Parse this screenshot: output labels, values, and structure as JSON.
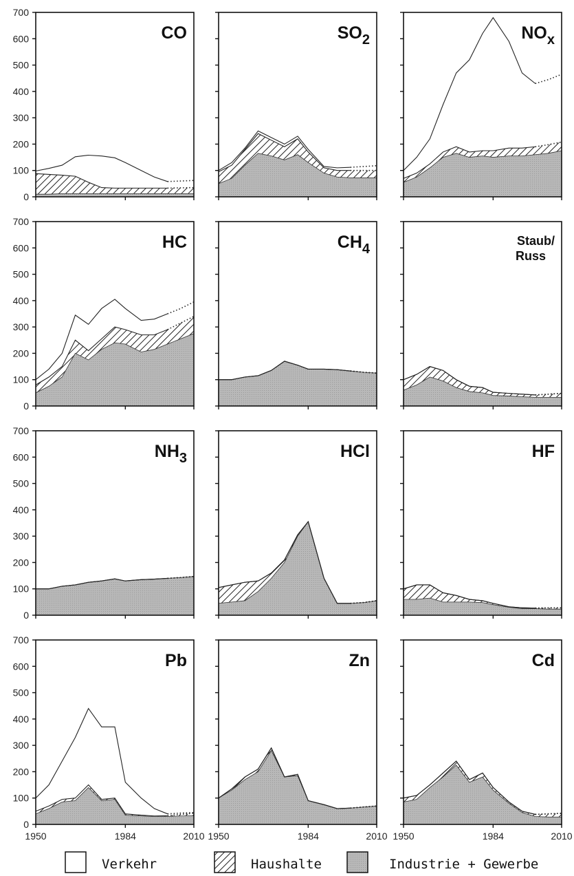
{
  "chart_data": {
    "type": "area",
    "stacked": true,
    "x_ticks": [
      1950,
      1984,
      2010
    ],
    "y_ticks": [
      0,
      100,
      200,
      300,
      400,
      500,
      600,
      700
    ],
    "ylim": [
      0,
      700
    ],
    "xlim": [
      1950,
      2010
    ],
    "dotted_from_year": 2000,
    "legend": [
      {
        "key": "verkehr",
        "label": "Verkehr",
        "fill": "#ffffff"
      },
      {
        "key": "haushalte",
        "label": "Haushalte",
        "fill": "hatch"
      },
      {
        "key": "industrie",
        "label": "Industrie + Gewerbe",
        "fill": "#bdbdbd"
      }
    ],
    "panels": [
      {
        "title": "CO",
        "sub": "",
        "x": [
          1950,
          1955,
          1960,
          1965,
          1970,
          1975,
          1980,
          1984,
          1990,
          1995,
          2000,
          2005,
          2010
        ],
        "industrie": [
          10,
          10,
          12,
          12,
          12,
          12,
          12,
          12,
          12,
          12,
          12,
          12,
          12
        ],
        "total_hh": [
          88,
          85,
          82,
          78,
          55,
          35,
          33,
          33,
          33,
          33,
          33,
          34,
          35
        ],
        "total": [
          98,
          108,
          120,
          152,
          158,
          155,
          148,
          130,
          100,
          75,
          58,
          60,
          62
        ]
      },
      {
        "title": "SO",
        "sub": "2",
        "x": [
          1950,
          1955,
          1960,
          1965,
          1970,
          1975,
          1980,
          1984,
          1990,
          1995,
          2000,
          2005,
          2010
        ],
        "industrie": [
          50,
          70,
          120,
          165,
          155,
          140,
          160,
          130,
          90,
          75,
          72,
          72,
          72
        ],
        "total_hh": [
          95,
          120,
          180,
          240,
          215,
          190,
          220,
          170,
          110,
          100,
          100,
          100,
          100
        ],
        "total": [
          100,
          130,
          185,
          250,
          225,
          200,
          230,
          180,
          115,
          110,
          112,
          115,
          118
        ]
      },
      {
        "title": "NO",
        "sub": "x",
        "x": [
          1950,
          1955,
          1960,
          1965,
          1970,
          1975,
          1980,
          1984,
          1990,
          1995,
          2000,
          2005,
          2010
        ],
        "industrie": [
          55,
          75,
          110,
          150,
          165,
          150,
          155,
          150,
          155,
          155,
          160,
          165,
          175
        ],
        "total_hh": [
          70,
          90,
          125,
          170,
          190,
          170,
          175,
          175,
          185,
          185,
          190,
          198,
          208
        ],
        "total": [
          100,
          150,
          220,
          350,
          470,
          520,
          620,
          680,
          590,
          470,
          430,
          445,
          465
        ]
      },
      {
        "title": "HC",
        "sub": "",
        "x": [
          1950,
          1955,
          1960,
          1965,
          1970,
          1975,
          1980,
          1984,
          1990,
          1995,
          2000,
          2005,
          2010
        ],
        "industrie": [
          50,
          75,
          110,
          200,
          175,
          215,
          240,
          235,
          205,
          215,
          235,
          255,
          275
        ],
        "total_hh": [
          80,
          110,
          150,
          250,
          210,
          255,
          300,
          290,
          270,
          270,
          290,
          315,
          340
        ],
        "total": [
          100,
          140,
          200,
          345,
          310,
          370,
          405,
          370,
          325,
          330,
          350,
          370,
          395
        ]
      },
      {
        "title": "CH",
        "sub": "4",
        "x": [
          1950,
          1955,
          1960,
          1965,
          1970,
          1975,
          1980,
          1984,
          1990,
          1995,
          2000,
          2005,
          2010
        ],
        "industrie": [
          100,
          100,
          110,
          115,
          135,
          170,
          155,
          140,
          140,
          138,
          133,
          128,
          125
        ],
        "total_hh": [
          100,
          100,
          110,
          115,
          135,
          170,
          155,
          140,
          140,
          138,
          133,
          128,
          125
        ],
        "total": [
          100,
          100,
          110,
          115,
          135,
          170,
          155,
          140,
          140,
          138,
          133,
          128,
          125
        ]
      },
      {
        "title": "Staub/",
        "title2": "Russ",
        "sub": "",
        "x": [
          1950,
          1955,
          1960,
          1965,
          1970,
          1975,
          1980,
          1984,
          1990,
          1995,
          2000,
          2005,
          2010
        ],
        "industrie": [
          60,
          80,
          110,
          95,
          70,
          55,
          50,
          40,
          38,
          35,
          33,
          33,
          33
        ],
        "total_hh": [
          100,
          120,
          150,
          135,
          100,
          75,
          70,
          52,
          48,
          45,
          42,
          45,
          48
        ],
        "total": [
          100,
          120,
          150,
          135,
          100,
          75,
          70,
          52,
          48,
          45,
          42,
          45,
          48
        ]
      },
      {
        "title": "NH",
        "sub": "3",
        "x": [
          1950,
          1955,
          1960,
          1965,
          1970,
          1975,
          1980,
          1984,
          1990,
          1995,
          2000,
          2005,
          2010
        ],
        "industrie": [
          100,
          100,
          110,
          115,
          125,
          130,
          138,
          130,
          135,
          137,
          140,
          143,
          147
        ],
        "total_hh": [
          100,
          100,
          110,
          115,
          125,
          130,
          138,
          130,
          135,
          137,
          140,
          143,
          147
        ],
        "total": [
          100,
          100,
          110,
          115,
          125,
          130,
          138,
          130,
          135,
          137,
          140,
          143,
          147
        ]
      },
      {
        "title": "HCl",
        "sub": "",
        "x": [
          1950,
          1955,
          1960,
          1965,
          1970,
          1975,
          1980,
          1984,
          1990,
          1995,
          2000,
          2005,
          2010
        ],
        "industrie": [
          45,
          50,
          55,
          90,
          140,
          200,
          300,
          355,
          140,
          45,
          45,
          48,
          55
        ],
        "total_hh": [
          105,
          115,
          125,
          130,
          160,
          210,
          305,
          355,
          140,
          45,
          45,
          48,
          55
        ],
        "total": [
          105,
          115,
          125,
          130,
          160,
          210,
          305,
          355,
          140,
          45,
          45,
          48,
          55
        ]
      },
      {
        "title": "HF",
        "sub": "",
        "x": [
          1950,
          1955,
          1960,
          1965,
          1970,
          1975,
          1980,
          1984,
          1990,
          1995,
          2000,
          2005,
          2010
        ],
        "industrie": [
          60,
          60,
          65,
          50,
          50,
          50,
          48,
          40,
          30,
          25,
          25,
          23,
          23
        ],
        "total_hh": [
          100,
          115,
          115,
          85,
          75,
          60,
          55,
          45,
          32,
          28,
          27,
          28,
          28
        ],
        "total": [
          100,
          115,
          115,
          85,
          75,
          60,
          55,
          45,
          32,
          28,
          27,
          28,
          28
        ]
      },
      {
        "title": "Pb",
        "sub": "",
        "x": [
          1950,
          1955,
          1960,
          1965,
          1970,
          1975,
          1980,
          1984,
          1990,
          1995,
          2000,
          2005,
          2010
        ],
        "industrie": [
          40,
          60,
          85,
          90,
          140,
          90,
          95,
          35,
          32,
          30,
          30,
          32,
          33
        ],
        "total_hh": [
          50,
          70,
          95,
          100,
          150,
          95,
          100,
          40,
          35,
          32,
          33,
          38,
          42
        ],
        "total": [
          100,
          150,
          240,
          330,
          440,
          370,
          370,
          160,
          100,
          60,
          40,
          43,
          45
        ]
      },
      {
        "title": "Zn",
        "sub": "",
        "x": [
          1950,
          1955,
          1960,
          1965,
          1970,
          1975,
          1980,
          1984,
          1990,
          1995,
          2000,
          2005,
          2010
        ],
        "industrie": [
          100,
          130,
          170,
          200,
          280,
          180,
          185,
          90,
          75,
          60,
          62,
          66,
          70
        ],
        "total_hh": [
          100,
          135,
          180,
          210,
          290,
          180,
          190,
          90,
          75,
          60,
          62,
          66,
          70
        ],
        "total": [
          100,
          135,
          180,
          210,
          290,
          180,
          190,
          90,
          75,
          60,
          62,
          66,
          70
        ]
      },
      {
        "title": "Cd",
        "sub": "",
        "x": [
          1950,
          1955,
          1960,
          1965,
          1970,
          1975,
          1980,
          1984,
          1990,
          1995,
          2000,
          2005,
          2010
        ],
        "industrie": [
          85,
          95,
          140,
          180,
          225,
          160,
          180,
          130,
          80,
          45,
          30,
          28,
          28
        ],
        "total_hh": [
          100,
          110,
          150,
          195,
          240,
          170,
          195,
          140,
          85,
          50,
          38,
          40,
          42
        ],
        "total": [
          100,
          110,
          150,
          195,
          240,
          170,
          195,
          140,
          85,
          50,
          38,
          40,
          42
        ]
      }
    ]
  },
  "colors": {
    "industrie": "#bdbdbd",
    "frame": "#111111",
    "line": "#222222"
  }
}
